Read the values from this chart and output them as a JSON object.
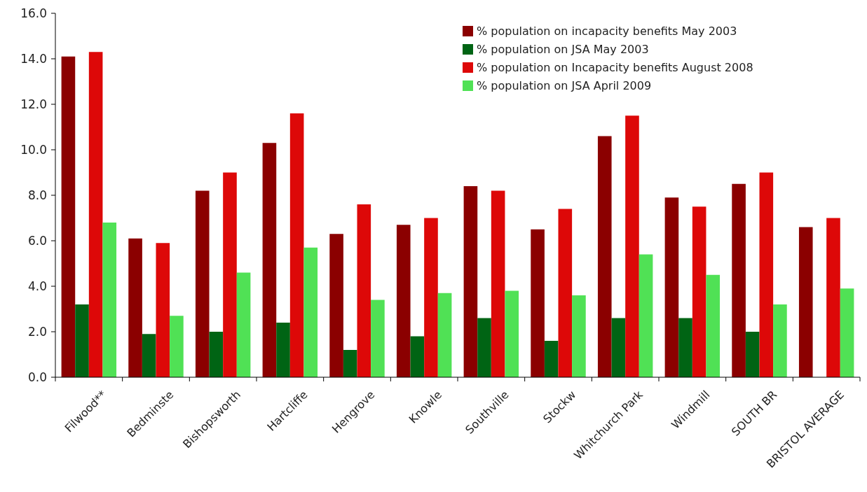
{
  "chart_data": {
    "type": "bar",
    "categories": [
      "Filwood**",
      "Bedminste",
      "Bishopsworth",
      "Hartcliffe",
      "Hengrove",
      "Knowle",
      "Southville",
      "Stockw",
      "Whitchurch Park",
      "Windmill",
      "SOUTH BR",
      "BRISTOL AVERAGE"
    ],
    "series": [
      {
        "name": "% population on incapacity benefits May 2003",
        "color": "#8b0000",
        "values": [
          14.1,
          6.1,
          8.2,
          10.3,
          6.3,
          6.7,
          8.4,
          6.5,
          10.6,
          7.9,
          8.5,
          6.6
        ]
      },
      {
        "name": "% population on JSA May 2003",
        "color": "#006414",
        "values": [
          3.2,
          1.9,
          2.0,
          2.4,
          1.2,
          1.8,
          2.6,
          1.6,
          2.6,
          2.6,
          2.0,
          null
        ]
      },
      {
        "name": "% population on Incapacity benefits August 2008",
        "color": "#dd0808",
        "values": [
          14.3,
          5.9,
          9.0,
          11.6,
          7.6,
          7.0,
          8.2,
          7.4,
          11.5,
          7.5,
          9.0,
          7.0
        ]
      },
      {
        "name": "% population on JSA April 2009",
        "color": "#50e155",
        "values": [
          6.8,
          2.7,
          4.6,
          5.7,
          3.4,
          3.7,
          3.8,
          3.6,
          5.4,
          4.5,
          3.2,
          3.9
        ]
      }
    ],
    "ylim": [
      0,
      16
    ],
    "yticks": [
      {
        "value": 0,
        "label": "0.0"
      },
      {
        "value": 2,
        "label": "2.0"
      },
      {
        "value": 4,
        "label": "4.0"
      },
      {
        "value": 6,
        "label": "6.0"
      },
      {
        "value": 8,
        "label": "8.0"
      },
      {
        "value": 10,
        "label": "10.0"
      },
      {
        "value": 12,
        "label": "12.0"
      },
      {
        "value": 14,
        "label": "14.0"
      },
      {
        "value": 16,
        "label": "16.0"
      }
    ],
    "grid": false,
    "legend": "top right"
  }
}
